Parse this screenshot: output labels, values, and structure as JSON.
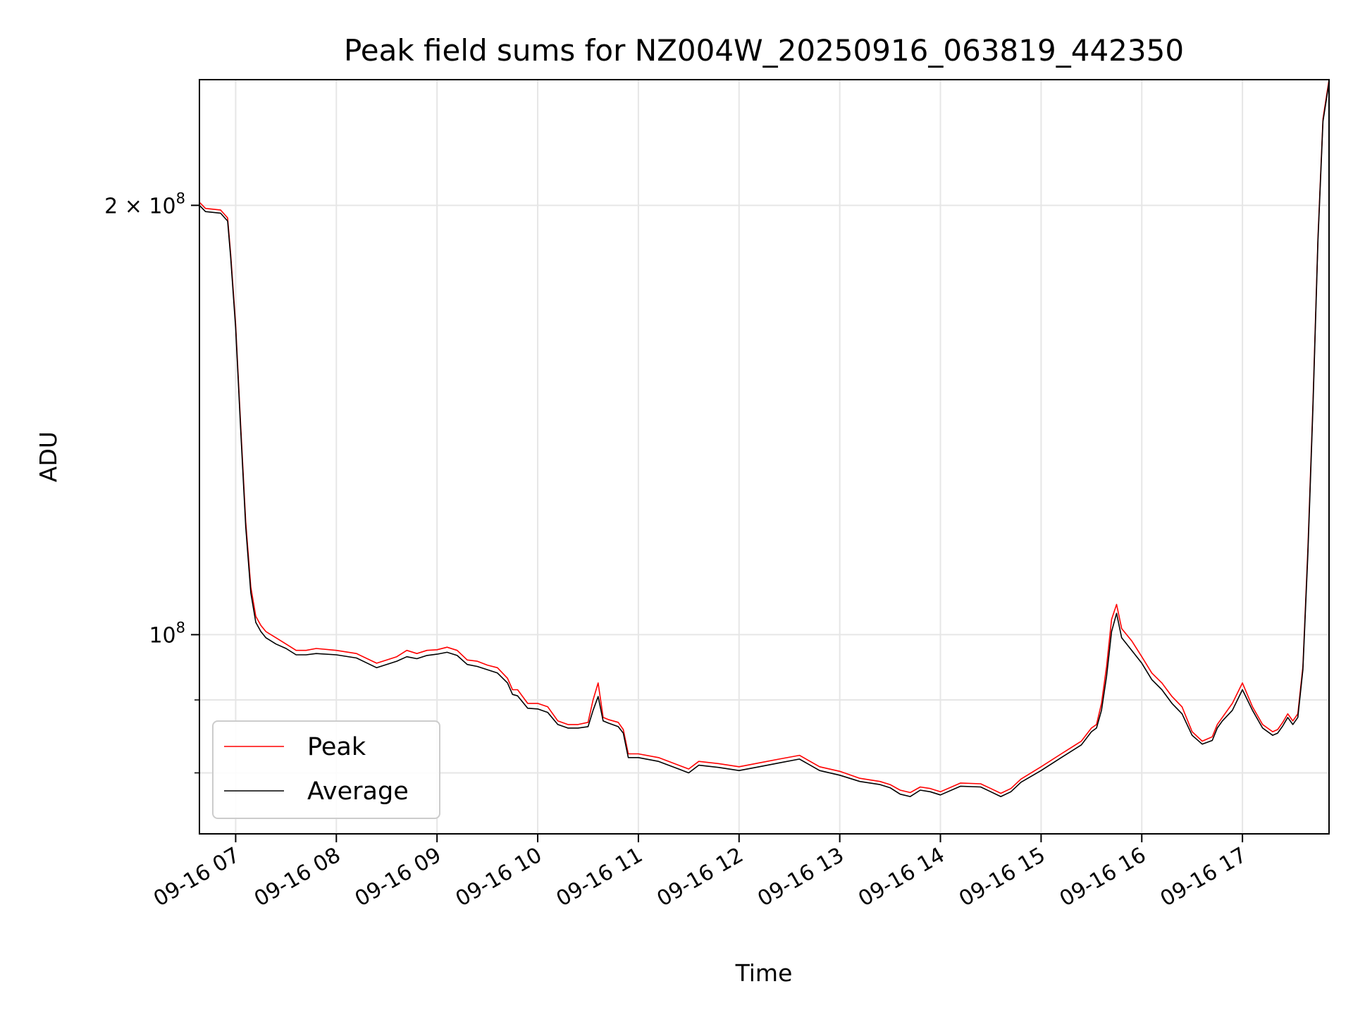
{
  "chart_data": {
    "type": "line",
    "title": "Peak field sums for NZ004W_20250916_063819_442350",
    "xlabel": "Time",
    "ylabel": "ADU",
    "y_scale": "log",
    "xlim_hours": [
      6.64,
      17.86
    ],
    "ylim": [
      72500000,
      245000000
    ],
    "grid": true,
    "legend_position": "lower-left",
    "x_ticks": [
      {
        "hour": 7,
        "label": "09-16 07"
      },
      {
        "hour": 8,
        "label": "09-16 08"
      },
      {
        "hour": 9,
        "label": "09-16 09"
      },
      {
        "hour": 10,
        "label": "09-16 10"
      },
      {
        "hour": 11,
        "label": "09-16 11"
      },
      {
        "hour": 12,
        "label": "09-16 12"
      },
      {
        "hour": 13,
        "label": "09-16 13"
      },
      {
        "hour": 14,
        "label": "09-16 14"
      },
      {
        "hour": 15,
        "label": "09-16 15"
      },
      {
        "hour": 16,
        "label": "09-16 16"
      },
      {
        "hour": 17,
        "label": "09-16 17"
      }
    ],
    "y_ticks": [
      {
        "value": 200000000,
        "label_base": "2 × 10",
        "label_exp": "8"
      },
      {
        "value": 100000000,
        "label_base": "10",
        "label_exp": "8"
      }
    ],
    "y_minor_ticks": [
      80000000,
      90000000
    ],
    "series": [
      {
        "name": "Peak",
        "color": "#ff0000",
        "x": [
          6.64,
          6.7,
          6.85,
          6.92,
          6.95,
          7.0,
          7.05,
          7.1,
          7.15,
          7.2,
          7.25,
          7.3,
          7.4,
          7.5,
          7.6,
          7.7,
          7.8,
          8.0,
          8.2,
          8.4,
          8.6,
          8.7,
          8.8,
          8.9,
          9.0,
          9.1,
          9.2,
          9.3,
          9.4,
          9.5,
          9.6,
          9.7,
          9.75,
          9.8,
          9.9,
          10.0,
          10.1,
          10.2,
          10.3,
          10.4,
          10.5,
          10.55,
          10.6,
          10.65,
          10.7,
          10.8,
          10.85,
          10.9,
          11.0,
          11.2,
          11.4,
          11.5,
          11.6,
          11.8,
          12.0,
          12.2,
          12.4,
          12.6,
          12.8,
          13.0,
          13.2,
          13.4,
          13.5,
          13.6,
          13.7,
          13.8,
          13.9,
          14.0,
          14.2,
          14.4,
          14.5,
          14.6,
          14.7,
          14.8,
          15.0,
          15.2,
          15.4,
          15.5,
          15.55,
          15.6,
          15.65,
          15.7,
          15.75,
          15.8,
          15.9,
          16.0,
          16.1,
          16.2,
          16.3,
          16.4,
          16.5,
          16.6,
          16.7,
          16.75,
          16.8,
          16.9,
          17.0,
          17.1,
          17.2,
          17.3,
          17.35,
          17.4,
          17.45,
          17.5,
          17.55,
          17.6,
          17.65,
          17.7,
          17.75,
          17.8,
          17.86
        ],
        "y": [
          201000000,
          199000000,
          198500000,
          196000000,
          185000000,
          165000000,
          140000000,
          120000000,
          108000000,
          103000000,
          101500000,
          100500000,
          99500000,
          98500000,
          97500000,
          97500000,
          97800000,
          97500000,
          97000000,
          95500000,
          96500000,
          97500000,
          97000000,
          97500000,
          97600000,
          98000000,
          97500000,
          96000000,
          95800000,
          95200000,
          94800000,
          93200000,
          91500000,
          91500000,
          89500000,
          89500000,
          89000000,
          87000000,
          86500000,
          86500000,
          86800000,
          90000000,
          92500000,
          87500000,
          87200000,
          86800000,
          85800000,
          82500000,
          82500000,
          82000000,
          81000000,
          80500000,
          81500000,
          81200000,
          80800000,
          81300000,
          81800000,
          82300000,
          80800000,
          80200000,
          79300000,
          78900000,
          78500000,
          77800000,
          77500000,
          78200000,
          78000000,
          77600000,
          78700000,
          78600000,
          78000000,
          77400000,
          78000000,
          79200000,
          80800000,
          82500000,
          84200000,
          86000000,
          86500000,
          89500000,
          95000000,
          102500000,
          105000000,
          101000000,
          99000000,
          96500000,
          94000000,
          92500000,
          90500000,
          89000000,
          85500000,
          84200000,
          84800000,
          86500000,
          87500000,
          89500000,
          92500000,
          89000000,
          86500000,
          85500000,
          85800000,
          86800000,
          88000000,
          87000000,
          88000000,
          95000000,
          115000000,
          145000000,
          190000000,
          230000000,
          245000000
        ]
      },
      {
        "name": "Average",
        "color": "#000000",
        "x": [
          6.64,
          6.7,
          6.85,
          6.92,
          6.95,
          7.0,
          7.05,
          7.1,
          7.15,
          7.2,
          7.25,
          7.3,
          7.4,
          7.5,
          7.6,
          7.7,
          7.8,
          8.0,
          8.2,
          8.4,
          8.6,
          8.7,
          8.8,
          8.9,
          9.0,
          9.1,
          9.2,
          9.3,
          9.4,
          9.5,
          9.6,
          9.7,
          9.75,
          9.8,
          9.9,
          10.0,
          10.1,
          10.2,
          10.3,
          10.4,
          10.5,
          10.55,
          10.6,
          10.65,
          10.7,
          10.8,
          10.85,
          10.9,
          11.0,
          11.2,
          11.4,
          11.5,
          11.6,
          11.8,
          12.0,
          12.2,
          12.4,
          12.6,
          12.8,
          13.0,
          13.2,
          13.4,
          13.5,
          13.6,
          13.7,
          13.8,
          13.9,
          14.0,
          14.2,
          14.4,
          14.5,
          14.6,
          14.7,
          14.8,
          15.0,
          15.2,
          15.4,
          15.5,
          15.55,
          15.6,
          15.65,
          15.7,
          15.75,
          15.8,
          15.9,
          16.0,
          16.1,
          16.2,
          16.3,
          16.4,
          16.5,
          16.6,
          16.7,
          16.75,
          16.8,
          16.9,
          17.0,
          17.1,
          17.2,
          17.3,
          17.35,
          17.4,
          17.45,
          17.5,
          17.55,
          17.6,
          17.65,
          17.7,
          17.75,
          17.8,
          17.86
        ],
        "y": [
          200000000,
          198000000,
          197500000,
          195000000,
          184000000,
          164000000,
          139000000,
          119000000,
          107000000,
          102000000,
          100500000,
          99500000,
          98500000,
          97800000,
          96800000,
          96800000,
          97000000,
          96800000,
          96300000,
          94800000,
          95800000,
          96500000,
          96200000,
          96700000,
          96900000,
          97200000,
          96700000,
          95300000,
          95000000,
          94500000,
          94000000,
          92500000,
          90800000,
          90600000,
          88800000,
          88700000,
          88200000,
          86500000,
          86000000,
          86000000,
          86200000,
          88500000,
          90500000,
          87000000,
          86700000,
          86200000,
          85300000,
          82000000,
          82000000,
          81500000,
          80500000,
          80000000,
          81000000,
          80700000,
          80300000,
          80800000,
          81300000,
          81800000,
          80300000,
          79700000,
          78900000,
          78500000,
          78100000,
          77300000,
          77000000,
          77800000,
          77600000,
          77200000,
          78300000,
          78200000,
          77600000,
          77000000,
          77600000,
          78800000,
          80300000,
          82000000,
          83700000,
          85500000,
          86000000,
          88500000,
          93500000,
          100500000,
          103500000,
          99500000,
          97500000,
          95500000,
          93000000,
          91500000,
          89500000,
          88000000,
          85000000,
          83800000,
          84300000,
          86000000,
          87000000,
          88500000,
          91500000,
          88500000,
          86000000,
          85000000,
          85300000,
          86300000,
          87500000,
          86500000,
          87500000,
          94500000,
          114000000,
          144000000,
          189000000,
          229000000,
          244000000
        ]
      }
    ]
  }
}
